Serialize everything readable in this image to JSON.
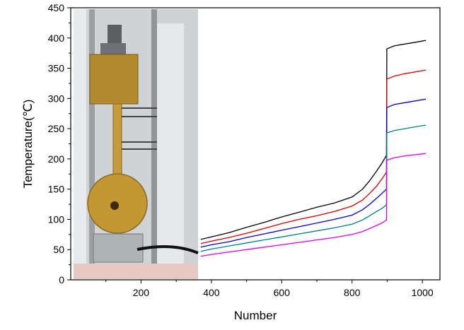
{
  "chart_data": {
    "type": "line",
    "xlabel": "Number",
    "ylabel": "Temperature(℃)",
    "xlim": [
      0,
      1050
    ],
    "ylim": [
      0,
      450
    ],
    "xticks": [
      200,
      400,
      600,
      800,
      1000
    ],
    "yticks": [
      0,
      50,
      100,
      150,
      200,
      250,
      300,
      350,
      400,
      450
    ],
    "grid": false,
    "legend": "none",
    "inset_photo": "experimental-apparatus-photo",
    "series": [
      {
        "color": "#000000",
        "x": [
          370,
          400,
          450,
          500,
          550,
          600,
          650,
          700,
          750,
          800,
          830,
          850,
          870,
          885,
          898,
          899,
          920,
          950,
          980,
          1010
        ],
        "y": [
          67,
          71,
          78,
          87,
          95,
          104,
          112,
          120,
          127,
          137,
          150,
          164,
          180,
          193,
          206,
          382,
          387,
          390,
          393,
          396
        ]
      },
      {
        "color": "#e00000",
        "x": [
          370,
          400,
          450,
          500,
          550,
          600,
          650,
          700,
          750,
          800,
          830,
          850,
          870,
          885,
          898,
          899,
          920,
          950,
          980,
          1010
        ],
        "y": [
          60,
          64,
          70,
          77,
          85,
          93,
          100,
          106,
          113,
          122,
          132,
          143,
          155,
          167,
          178,
          332,
          337,
          341,
          344,
          347
        ]
      },
      {
        "color": "#0000e0",
        "x": [
          370,
          400,
          450,
          500,
          550,
          600,
          650,
          700,
          750,
          800,
          830,
          850,
          870,
          885,
          898,
          899,
          920,
          950,
          980,
          1010
        ],
        "y": [
          54,
          58,
          63,
          70,
          76,
          82,
          88,
          94,
          100,
          107,
          116,
          125,
          135,
          143,
          150,
          285,
          290,
          293,
          296,
          299
        ]
      },
      {
        "color": "#008080",
        "x": [
          370,
          400,
          450,
          500,
          550,
          600,
          650,
          700,
          750,
          800,
          830,
          850,
          870,
          885,
          898,
          899,
          920,
          950,
          980,
          1010
        ],
        "y": [
          47,
          51,
          56,
          61,
          66,
          71,
          76,
          81,
          86,
          92,
          99,
          106,
          113,
          118,
          124,
          243,
          247,
          250,
          253,
          256
        ]
      },
      {
        "color": "#e000e0",
        "x": [
          370,
          400,
          450,
          500,
          550,
          600,
          650,
          700,
          750,
          800,
          830,
          850,
          870,
          885,
          898,
          899,
          920,
          950,
          980,
          1010
        ],
        "y": [
          39,
          42,
          46,
          50,
          54,
          58,
          62,
          66,
          70,
          75,
          80,
          85,
          90,
          94,
          99,
          198,
          202,
          205,
          207,
          209
        ]
      }
    ]
  }
}
